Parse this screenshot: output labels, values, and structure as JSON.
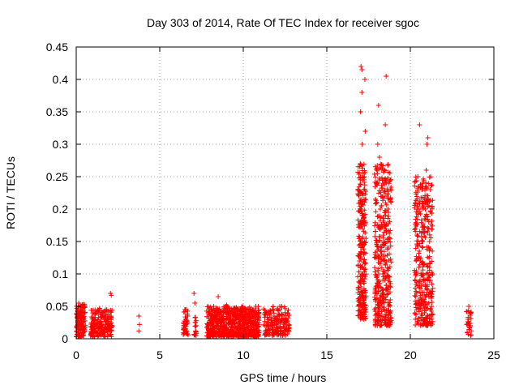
{
  "chart_data": {
    "type": "scatter",
    "title": "Day 303 of 2014, Rate Of TEC Index for receiver sgoc",
    "xlabel": "GPS time / hours",
    "ylabel": "ROTI / TECUs",
    "xlim": [
      0,
      25
    ],
    "ylim": [
      0,
      0.45
    ],
    "xticks": [
      0,
      5,
      10,
      15,
      20,
      25
    ],
    "xtick_labels": [
      "0",
      "5",
      "10",
      "15",
      "20",
      "25"
    ],
    "yticks": [
      0,
      0.05,
      0.1,
      0.15,
      0.2,
      0.25,
      0.3,
      0.35,
      0.4,
      0.45
    ],
    "ytick_labels": [
      "0",
      "0.05",
      "0.1",
      "0.15",
      "0.2",
      "0.25",
      "0.3",
      "0.35",
      "0.4",
      "0.45"
    ],
    "grid": true,
    "marker": "+",
    "color": "#ff0000",
    "series": [
      {
        "name": "ROTI",
        "points": [
          [
            0.05,
            0.02
          ],
          [
            0.1,
            0.035
          ],
          [
            0.15,
            0.055
          ],
          [
            0.2,
            0.015
          ],
          [
            0.25,
            0.045
          ],
          [
            0.3,
            0.028
          ],
          [
            0.35,
            0.052
          ],
          [
            0.4,
            0.01
          ],
          [
            0.45,
            0.03
          ],
          [
            0.5,
            0.04
          ],
          [
            0.2,
            0.005
          ],
          [
            0.3,
            0.02
          ],
          [
            0.4,
            0.025
          ],
          [
            0.9,
            0.018
          ],
          [
            1.0,
            0.03
          ],
          [
            1.1,
            0.012
          ],
          [
            1.2,
            0.04
          ],
          [
            1.3,
            0.025
          ],
          [
            1.4,
            0.047
          ],
          [
            1.5,
            0.02
          ],
          [
            1.6,
            0.035
          ],
          [
            1.7,
            0.01
          ],
          [
            1.8,
            0.028
          ],
          [
            1.9,
            0.038
          ],
          [
            2.0,
            0.015
          ],
          [
            2.1,
            0.032
          ],
          [
            1.25,
            0.008
          ],
          [
            1.55,
            0.015
          ],
          [
            1.85,
            0.022
          ],
          [
            2.05,
            0.07
          ],
          [
            2.1,
            0.067
          ],
          [
            3.75,
            0.035
          ],
          [
            3.75,
            0.012
          ],
          [
            3.78,
            0.022
          ],
          [
            6.45,
            0.02
          ],
          [
            6.5,
            0.045
          ],
          [
            6.55,
            0.03
          ],
          [
            6.6,
            0.012
          ],
          [
            6.65,
            0.038
          ],
          [
            7.05,
            0.07
          ],
          [
            7.1,
            0.055
          ],
          [
            7.12,
            0.025
          ],
          [
            7.15,
            0.012
          ],
          [
            7.9,
            0.02
          ],
          [
            8.1,
            0.045
          ],
          [
            8.3,
            0.03
          ],
          [
            8.5,
            0.065
          ],
          [
            8.6,
            0.015
          ],
          [
            8.8,
            0.04
          ],
          [
            9.0,
            0.052
          ],
          [
            9.2,
            0.025
          ],
          [
            9.4,
            0.035
          ],
          [
            9.6,
            0.015
          ],
          [
            9.8,
            0.045
          ],
          [
            10.0,
            0.03
          ],
          [
            10.2,
            0.04
          ],
          [
            10.4,
            0.012
          ],
          [
            10.6,
            0.028
          ],
          [
            10.8,
            0.02
          ],
          [
            8.2,
            0.01
          ],
          [
            8.7,
            0.025
          ],
          [
            9.3,
            0.008
          ],
          [
            9.9,
            0.018
          ],
          [
            10.5,
            0.035
          ],
          [
            11.3,
            0.02
          ],
          [
            11.5,
            0.042
          ],
          [
            11.7,
            0.028
          ],
          [
            11.9,
            0.012
          ],
          [
            12.1,
            0.038
          ],
          [
            12.3,
            0.05
          ],
          [
            12.5,
            0.025
          ],
          [
            12.65,
            0.04
          ],
          [
            12.7,
            0.015
          ],
          [
            16.9,
            0.05
          ],
          [
            16.95,
            0.12
          ],
          [
            17.0,
            0.2
          ],
          [
            17.0,
            0.27
          ],
          [
            17.02,
            0.35
          ],
          [
            17.05,
            0.42
          ],
          [
            17.1,
            0.415
          ],
          [
            17.1,
            0.38
          ],
          [
            17.12,
            0.3
          ],
          [
            17.15,
            0.18
          ],
          [
            17.15,
            0.1
          ],
          [
            17.2,
            0.06
          ],
          [
            17.2,
            0.03
          ],
          [
            17.25,
            0.15
          ],
          [
            17.25,
            0.25
          ],
          [
            17.28,
            0.4
          ],
          [
            17.3,
            0.32
          ],
          [
            17.05,
            0.08
          ],
          [
            17.9,
            0.03
          ],
          [
            17.95,
            0.07
          ],
          [
            18.0,
            0.15
          ],
          [
            18.0,
            0.24
          ],
          [
            18.05,
            0.3
          ],
          [
            18.1,
            0.36
          ],
          [
            18.15,
            0.28
          ],
          [
            18.2,
            0.2
          ],
          [
            18.25,
            0.12
          ],
          [
            18.3,
            0.05
          ],
          [
            18.35,
            0.1
          ],
          [
            18.4,
            0.18
          ],
          [
            18.45,
            0.26
          ],
          [
            18.5,
            0.33
          ],
          [
            18.55,
            0.405
          ],
          [
            18.6,
            0.22
          ],
          [
            18.65,
            0.14
          ],
          [
            18.7,
            0.08
          ],
          [
            18.75,
            0.02
          ],
          [
            18.8,
            0.06
          ],
          [
            20.3,
            0.03
          ],
          [
            20.35,
            0.1
          ],
          [
            20.4,
            0.16
          ],
          [
            20.45,
            0.25
          ],
          [
            20.5,
            0.2
          ],
          [
            20.55,
            0.33
          ],
          [
            20.6,
            0.12
          ],
          [
            20.65,
            0.06
          ],
          [
            20.7,
            0.23
          ],
          [
            20.75,
            0.15
          ],
          [
            20.8,
            0.09
          ],
          [
            20.85,
            0.04
          ],
          [
            20.9,
            0.2
          ],
          [
            20.95,
            0.26
          ],
          [
            21.0,
            0.3
          ],
          [
            21.05,
            0.31
          ],
          [
            21.1,
            0.17
          ],
          [
            21.15,
            0.11
          ],
          [
            21.2,
            0.07
          ],
          [
            21.25,
            0.03
          ],
          [
            23.4,
            0.01
          ],
          [
            23.45,
            0.03
          ],
          [
            23.5,
            0.05
          ],
          [
            23.55,
            0.02
          ],
          [
            23.6,
            0.04
          ]
        ]
      }
    ],
    "clusters": [
      {
        "x_from": 0.0,
        "x_to": 0.55,
        "y_from": 0.003,
        "y_to": 0.055,
        "count": 120
      },
      {
        "x_from": 0.85,
        "x_to": 2.15,
        "y_from": 0.003,
        "y_to": 0.045,
        "count": 200
      },
      {
        "x_from": 6.4,
        "x_to": 6.7,
        "y_from": 0.005,
        "y_to": 0.045,
        "count": 40
      },
      {
        "x_from": 7.05,
        "x_to": 7.2,
        "y_from": 0.005,
        "y_to": 0.035,
        "count": 15
      },
      {
        "x_from": 7.8,
        "x_to": 10.95,
        "y_from": 0.003,
        "y_to": 0.05,
        "count": 700
      },
      {
        "x_from": 11.2,
        "x_to": 12.75,
        "y_from": 0.005,
        "y_to": 0.05,
        "count": 180
      },
      {
        "x_from": 16.85,
        "x_to": 17.35,
        "y_from": 0.03,
        "y_to": 0.27,
        "count": 260
      },
      {
        "x_from": 17.85,
        "x_to": 18.85,
        "y_from": 0.02,
        "y_to": 0.27,
        "count": 380
      },
      {
        "x_from": 20.25,
        "x_to": 21.35,
        "y_from": 0.02,
        "y_to": 0.25,
        "count": 360
      },
      {
        "x_from": 23.35,
        "x_to": 23.65,
        "y_from": 0.005,
        "y_to": 0.045,
        "count": 30
      }
    ]
  }
}
